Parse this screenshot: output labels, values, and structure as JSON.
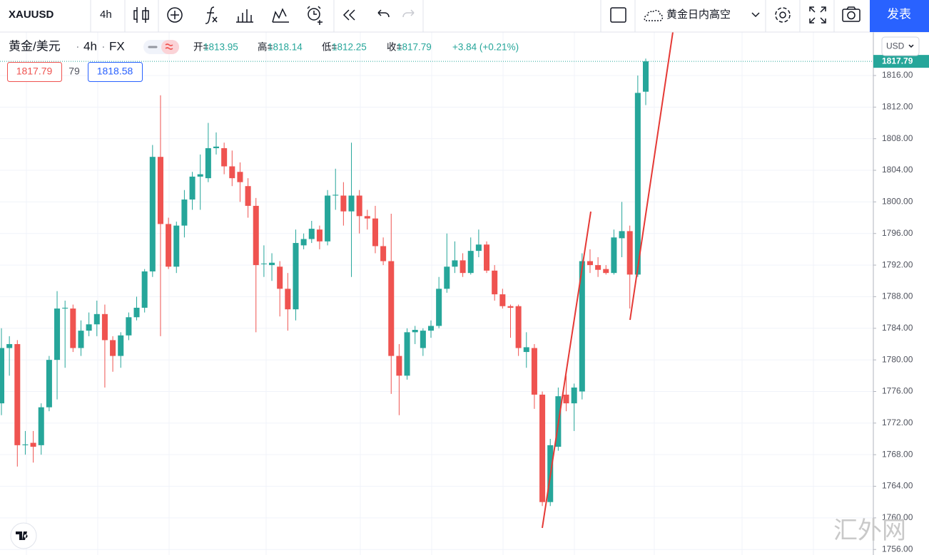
{
  "toolbar": {
    "symbol": "XAUUSD",
    "interval": "4h",
    "layout_name": "黄金日内高空",
    "publish": "发表"
  },
  "legend": {
    "symbol_name": "黄金/美元",
    "interval": "4h",
    "exchange": "FX",
    "items": [
      {
        "label": "开=",
        "value": "1813.95"
      },
      {
        "label": "高=",
        "value": "1818.14"
      },
      {
        "label": "低=",
        "value": "1812.25"
      },
      {
        "label": "收=",
        "value": "1817.79"
      }
    ],
    "change": "+3.84 (+0.21%)"
  },
  "quote": {
    "bid": "1817.79",
    "spread": "79",
    "ask": "1818.58"
  },
  "currency": "USD",
  "watermark": "汇外网",
  "chart_data": {
    "type": "candlestick",
    "up_color": "#26a69a",
    "down_color": "#ef5350",
    "grid": true,
    "open": [
      1774.5,
      1781.5,
      1782,
      1769.2,
      1769.5,
      1769.2,
      1774,
      1780,
      1786.5,
      1786.5,
      1781.5,
      1783.7,
      1784.5,
      1785.8,
      1782.5,
      1780.5,
      1783.1,
      1785.4,
      1786.6,
      1791.2,
      1805.7,
      1797.2,
      1791.8,
      1797,
      1800.3,
      1803.2,
      1803,
      1806.8,
      1806.8,
      1804.5,
      1803.8,
      1802,
      1799.5,
      1792.2,
      1792,
      1791.8,
      1789,
      1786.4,
      1794.5,
      1795.3,
      1796.5,
      1795,
      1800.8,
      1800.8,
      1798.8,
      1800.8,
      1798.2,
      1797.9,
      1794.4,
      1792.5,
      1780.5,
      1778,
      1783.5,
      1781.5,
      1783.7,
      1784.3,
      1789,
      1791.8,
      1792.6,
      1791,
      1793.8,
      1794.6,
      1791.3,
      1788.3,
      1786.8,
      1786.8,
      1781,
      1781.5,
      1775.6,
      1762,
      1769,
      1775.6,
      1774.5,
      1776,
      1792.5,
      1792,
      1791.5,
      1791,
      1795.4,
      1796.3,
      1790.8,
      1813.95
    ],
    "high": [
      1784,
      1783,
      1782.5,
      1771,
      1771,
      1774.5,
      1780.5,
      1788.7,
      1787.5,
      1787,
      1785,
      1786,
      1787.5,
      1787,
      1783,
      1783.5,
      1786,
      1788,
      1791.5,
      1807.2,
      1813.5,
      1798,
      1797.5,
      1801.5,
      1803.8,
      1806,
      1810,
      1808.8,
      1807.5,
      1806.5,
      1805,
      1803,
      1800.5,
      1794.5,
      1793.5,
      1792.5,
      1791,
      1796.5,
      1796,
      1797.6,
      1797,
      1801.5,
      1804.2,
      1802.5,
      1807.5,
      1801.5,
      1799,
      1799.5,
      1795.5,
      1798.5,
      1782,
      1784,
      1784.3,
      1784,
      1785,
      1790.5,
      1796,
      1795,
      1793.5,
      1795.5,
      1796.5,
      1795,
      1792,
      1789,
      1787,
      1787,
      1783.5,
      1782,
      1776,
      1770,
      1776.5,
      1778,
      1777,
      1793.5,
      1794,
      1793,
      1792,
      1796.5,
      1800,
      1797,
      1816,
      1818.14
    ],
    "low": [
      1773,
      1778,
      1766.5,
      1768,
      1767,
      1768,
      1773.5,
      1775,
      1779,
      1781,
      1780.5,
      1783,
      1783,
      1776.5,
      1778.5,
      1779,
      1782.5,
      1785,
      1786,
      1790.5,
      1783,
      1791.5,
      1791,
      1795.5,
      1799,
      1799,
      1802.5,
      1806,
      1803.5,
      1802,
      1800,
      1798,
      1783.5,
      1790.5,
      1790,
      1785.5,
      1783.7,
      1785,
      1794,
      1794.8,
      1794,
      1794.5,
      1799,
      1797,
      1790.5,
      1796,
      1796.5,
      1793.5,
      1792,
      1775.7,
      1773,
      1777.5,
      1782,
      1780.5,
      1782.8,
      1784,
      1788.5,
      1791,
      1790.5,
      1790.8,
      1793,
      1791,
      1787.5,
      1786.5,
      1782.8,
      1780.5,
      1779,
      1773.8,
      1761.5,
      1761.5,
      1768.5,
      1773.5,
      1771,
      1775,
      1791,
      1790.5,
      1790.8,
      1790.8,
      1793,
      1786.5,
      1790.5,
      1812.25
    ],
    "close": [
      1781.5,
      1782,
      1769.2,
      1769.3,
      1769,
      1774,
      1780,
      1786.5,
      1786.6,
      1781.5,
      1783.7,
      1784.5,
      1785.8,
      1782.5,
      1780.5,
      1783.1,
      1785.4,
      1786.6,
      1791.2,
      1805.7,
      1797.2,
      1791.8,
      1797,
      1800.3,
      1803.2,
      1803.5,
      1806.8,
      1807,
      1804.5,
      1803,
      1802.5,
      1799.5,
      1792,
      1792.2,
      1792.3,
      1789,
      1786.4,
      1794.8,
      1795.3,
      1796.6,
      1795,
      1800.8,
      1800.9,
      1798.8,
      1800.8,
      1798.2,
      1797.9,
      1794.4,
      1792.5,
      1780.5,
      1778,
      1783.5,
      1783.8,
      1783.7,
      1784.3,
      1789,
      1791.8,
      1792.6,
      1791,
      1793.8,
      1794.6,
      1791.3,
      1788.3,
      1786.8,
      1786.6,
      1781.5,
      1781.6,
      1775.6,
      1762,
      1769.2,
      1775.4,
      1774.5,
      1776.5,
      1792.5,
      1792,
      1791.4,
      1791,
      1795.5,
      1796.3,
      1790.8,
      1813.8,
      1817.79
    ],
    "ylim": [
      1755.3,
      1821.5
    ],
    "yticks": [
      {
        "value": 1756,
        "label": "1756.00"
      },
      {
        "value": 1760,
        "label": "1760.00"
      },
      {
        "value": 1764,
        "label": "1764.00"
      },
      {
        "value": 1768,
        "label": "1768.00"
      },
      {
        "value": 1772,
        "label": "1772.00"
      },
      {
        "value": 1776,
        "label": "1776.00"
      },
      {
        "value": 1780,
        "label": "1780.00"
      },
      {
        "value": 1784,
        "label": "1784.00"
      },
      {
        "value": 1788,
        "label": "1788.00"
      },
      {
        "value": 1792,
        "label": "1792.00"
      },
      {
        "value": 1796,
        "label": "1796.00"
      },
      {
        "value": 1800,
        "label": "1800.00"
      },
      {
        "value": 1804,
        "label": "1804.00"
      },
      {
        "value": 1808,
        "label": "1808.00"
      },
      {
        "value": 1812,
        "label": "1812.00"
      },
      {
        "value": 1816,
        "label": "1816.00"
      }
    ]
  }
}
